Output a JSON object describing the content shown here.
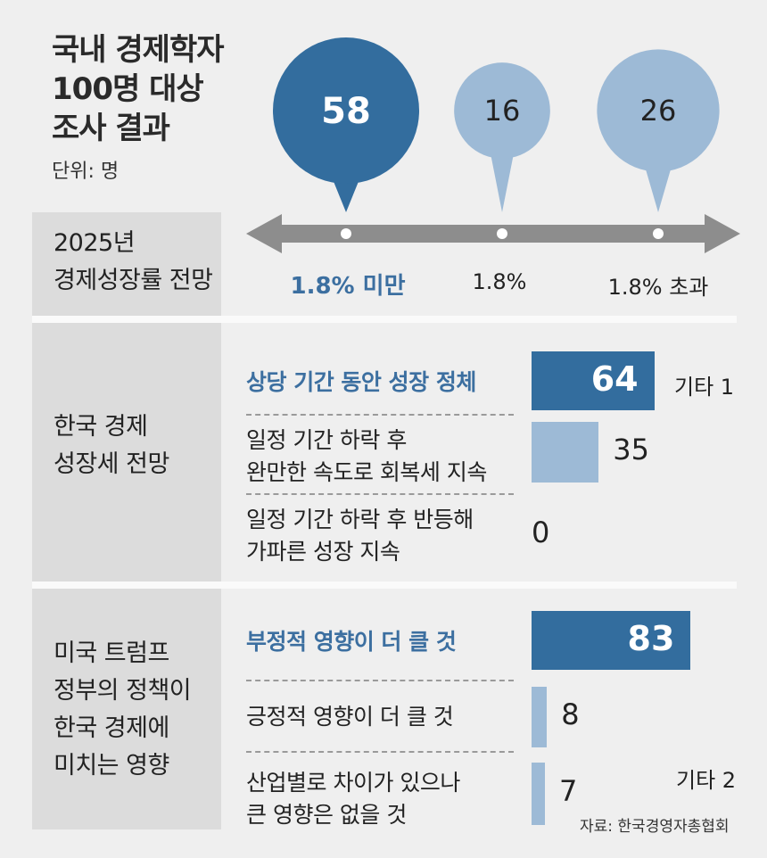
{
  "header": {
    "title_lines": [
      "국내 경제학자",
      "100명 대상",
      "조사 결과"
    ],
    "unit": "단위: 명"
  },
  "colors": {
    "dark": "#336d9e",
    "light": "#9dbad6",
    "highlight_text": "#3c6fa0"
  },
  "chart_data": [
    {
      "type": "bubble-timeline",
      "section_label": [
        "2025년",
        "경제성장률 전망"
      ],
      "categories": [
        "1.8% 미만",
        "1.8%",
        "1.8% 초과"
      ],
      "values": [
        58,
        16,
        26
      ],
      "highlight_index": 0
    },
    {
      "type": "bar",
      "section_label": [
        "한국 경제",
        "성장세 전망"
      ],
      "categories": [
        [
          "상당 기간 동안 성장 정체"
        ],
        [
          "일정 기간 하락 후",
          "완만한 속도로 회복세 지속"
        ],
        [
          "일정 기간 하락 후 반등해",
          "가파른 성장 지속"
        ]
      ],
      "values": [
        64,
        35,
        0
      ],
      "highlight_index": 0,
      "other_label": "기타 1"
    },
    {
      "type": "bar",
      "section_label": [
        "미국 트럼프",
        "정부의 정책이",
        "한국 경제에",
        "미치는 영향"
      ],
      "categories": [
        [
          "부정적 영향이 더 클 것"
        ],
        [
          "긍정적 영향이 더 클 것"
        ],
        [
          "산업별로 차이가 있으나",
          "큰 영향은 없을 것"
        ]
      ],
      "values": [
        83,
        8,
        7
      ],
      "highlight_index": 0,
      "other_label": "기타 2"
    }
  ],
  "source": "자료: 한국경영자총협회"
}
